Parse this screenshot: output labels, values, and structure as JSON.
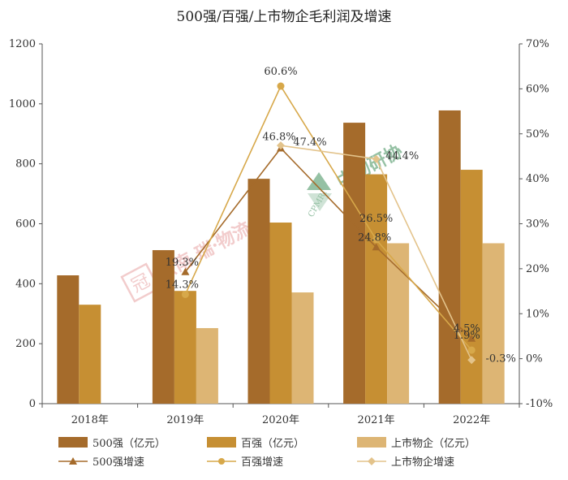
{
  "colors": {
    "s500": "#A56B2B",
    "s100": "#C68F33",
    "listed": "#DDB574",
    "l500": "#A56B2B",
    "l100": "#D7A84A",
    "llisted": "#E3C38B",
    "axis": "#555555",
    "watermark_red": "#E8A3A3",
    "watermark_green": "#3F8F5A"
  },
  "watermarks": {
    "left_text": "云南 瑞·物流",
    "left_seal": "冠",
    "right_text": "中物研协",
    "right_sub": "CPMRI"
  },
  "chart_data": {
    "type": "bar",
    "title": "500强/百强/上市物企毛利润及增速",
    "categories": [
      "2018年",
      "2019年",
      "2020年",
      "2021年",
      "2022年"
    ],
    "ylim": [
      0,
      1200
    ],
    "yticks": [
      "0",
      "200",
      "400",
      "600",
      "800",
      "1000",
      "1200"
    ],
    "y2lim": [
      -10,
      70
    ],
    "y2ticks": [
      "-10%",
      "0%",
      "10%",
      "20%",
      "30%",
      "40%",
      "50%",
      "60%",
      "70%"
    ],
    "grid": false,
    "legend_position": "bottom",
    "series": [
      {
        "name": "500强（亿元）",
        "kind": "bar",
        "color_key": "s500",
        "values": [
          428,
          512,
          750,
          937,
          978
        ]
      },
      {
        "name": "百强（亿元）",
        "kind": "bar",
        "color_key": "s100",
        "values": [
          330,
          376,
          604,
          765,
          780
        ]
      },
      {
        "name": "上市物企（亿元）",
        "kind": "bar",
        "color_key": "listed",
        "values": [
          null,
          252,
          371,
          535,
          535
        ]
      },
      {
        "name": "500强增速",
        "kind": "line",
        "axis": "right",
        "marker": "triangle",
        "color_key": "l500",
        "values": [
          null,
          19.3,
          46.8,
          24.8,
          4.5
        ],
        "labels": [
          "",
          "19.3%",
          "46.8%",
          "24.8%",
          "4.5%"
        ]
      },
      {
        "name": "百强增速",
        "kind": "line",
        "axis": "right",
        "marker": "circle",
        "color_key": "l100",
        "values": [
          null,
          14.3,
          60.6,
          26.5,
          1.9
        ],
        "labels": [
          "",
          "14.3%",
          "60.6%",
          "26.5%",
          "1.9%"
        ]
      },
      {
        "name": "上市物企增速",
        "kind": "line",
        "axis": "right",
        "marker": "diamond",
        "color_key": "llisted",
        "values": [
          null,
          null,
          47.4,
          44.4,
          -0.3
        ],
        "labels": [
          "",
          "",
          "47.4%",
          "44.4%",
          "-0.3%"
        ]
      }
    ]
  }
}
